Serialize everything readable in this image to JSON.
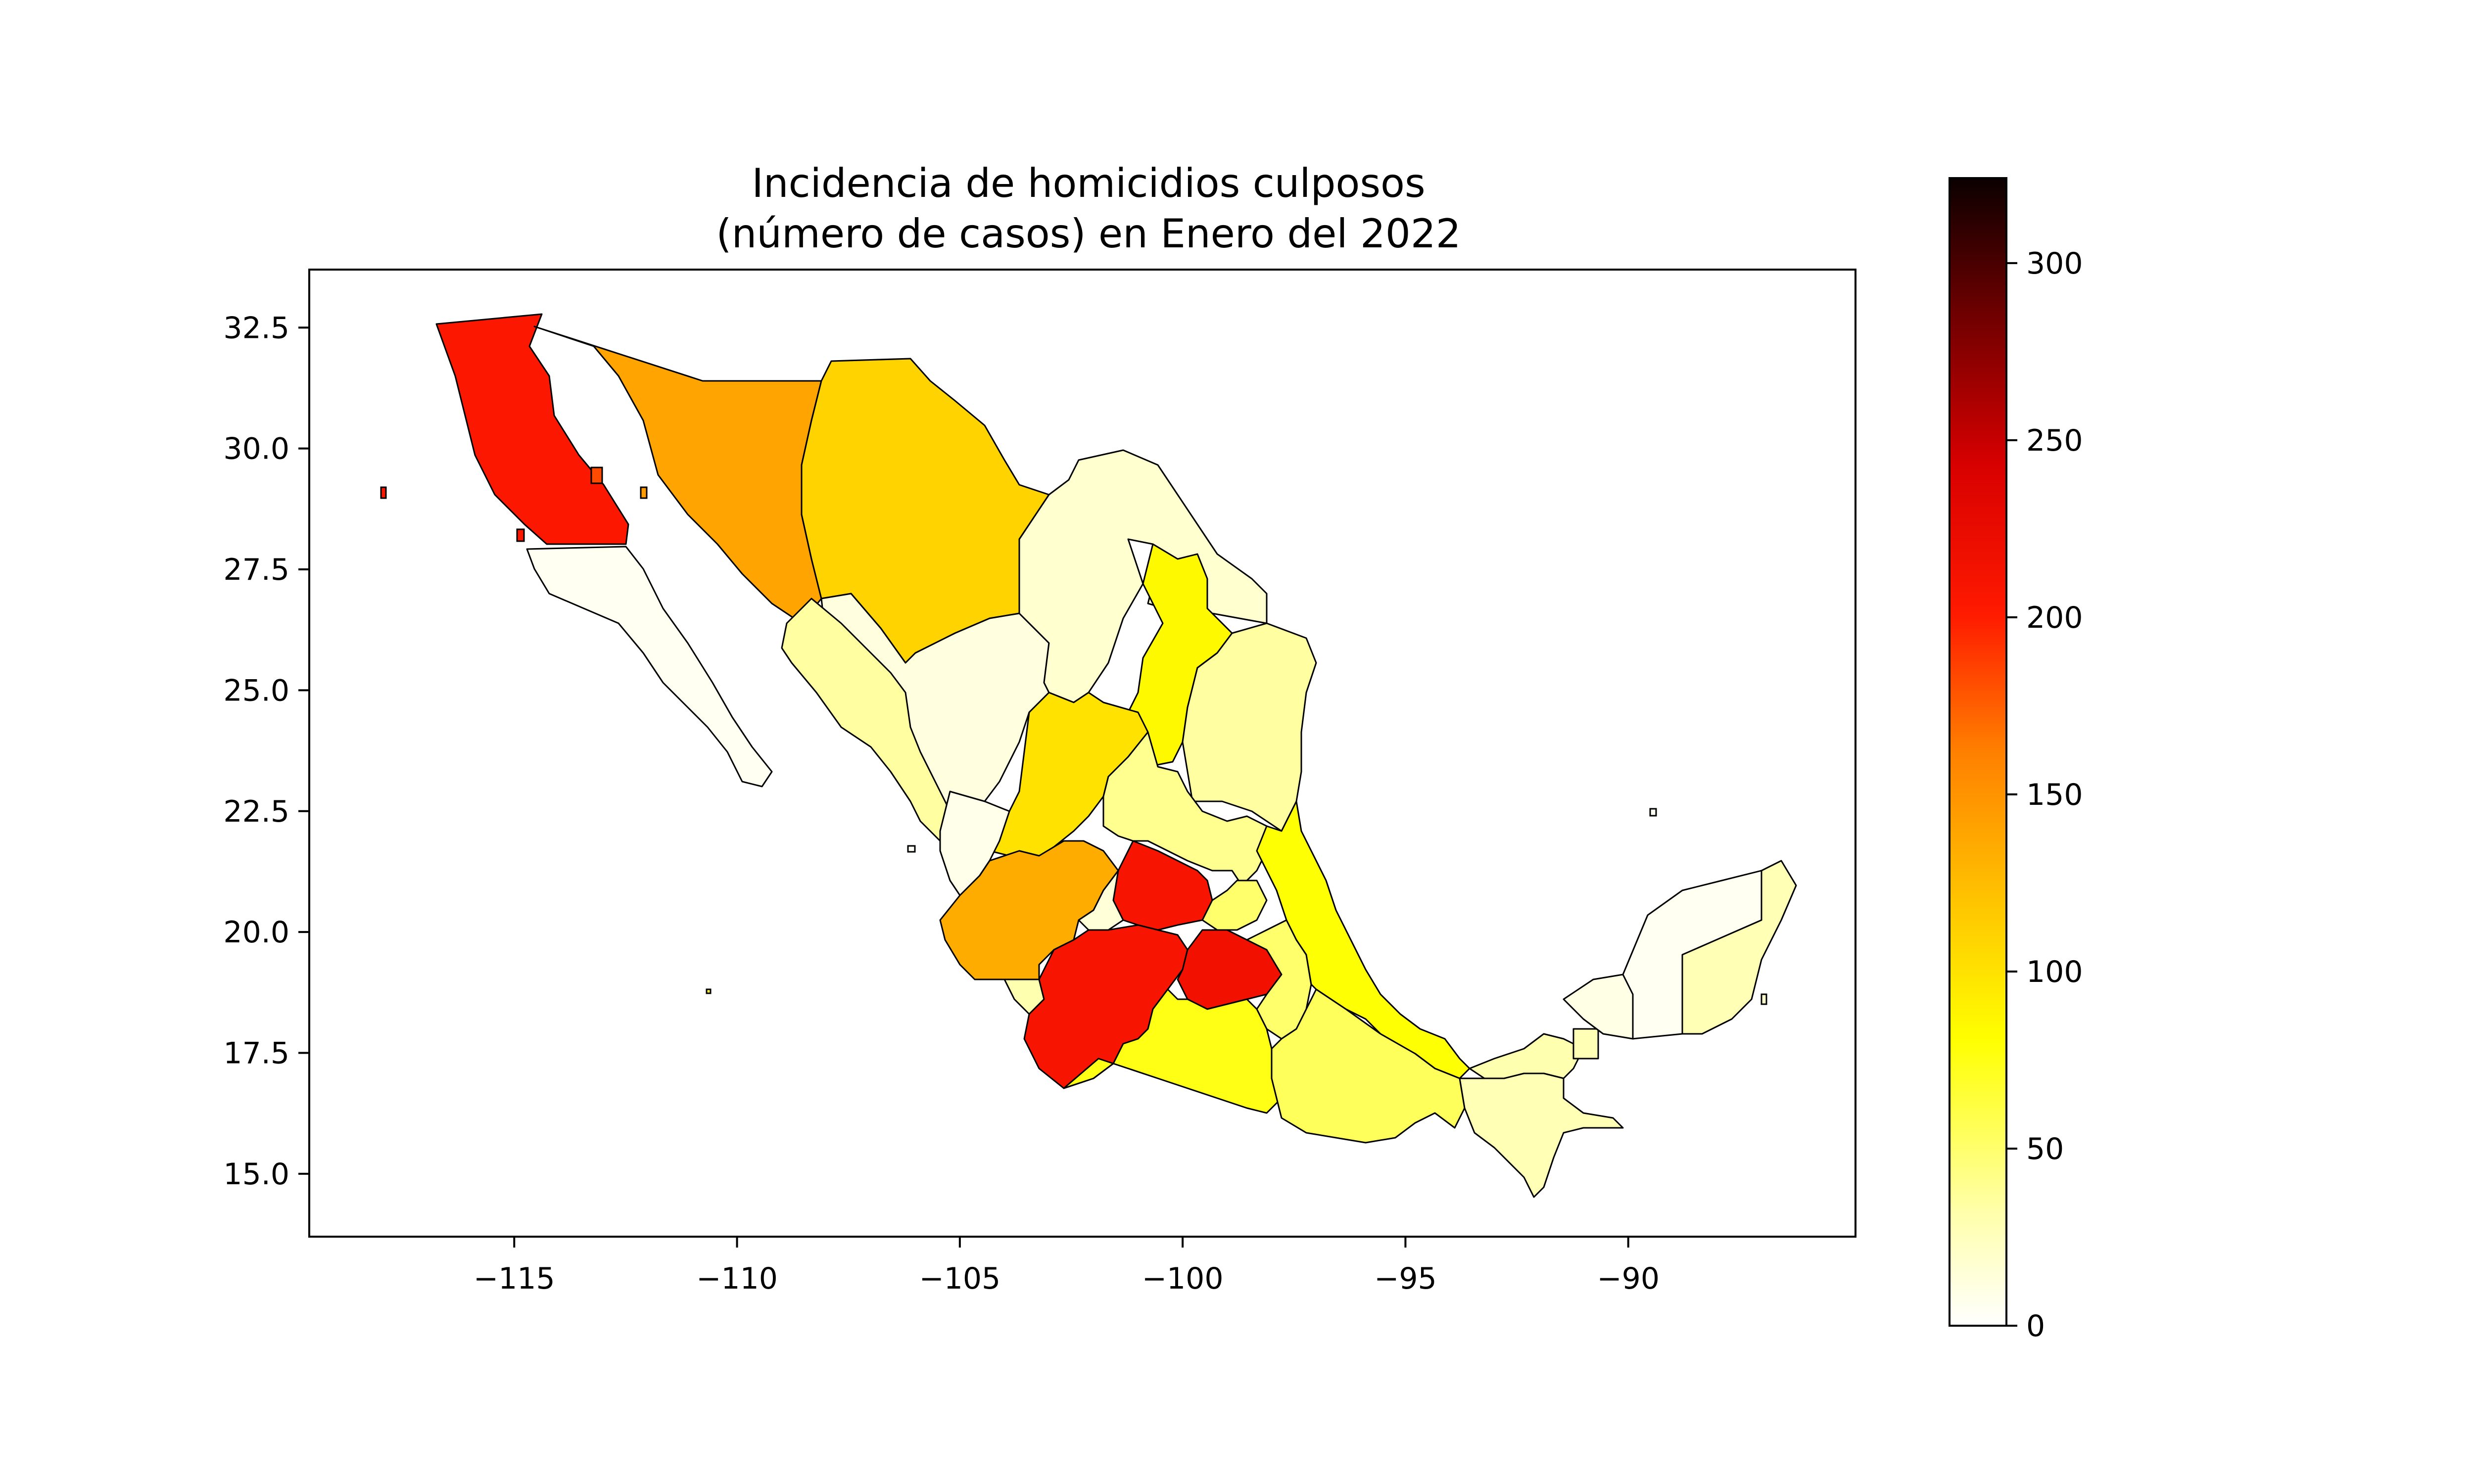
{
  "map": {
    "title_line1": "Incidencia de homicidios culposos",
    "title_line2": "(número de casos) en Enero del 2022",
    "x_ticks": [
      "−115",
      "−110",
      "−105",
      "−100",
      "−95",
      "−90"
    ],
    "x_tick_values": [
      -115,
      -110,
      -105,
      -100,
      -95,
      -90
    ],
    "y_ticks": [
      "15.0",
      "17.5",
      "20.0",
      "22.5",
      "25.0",
      "27.5",
      "30.0",
      "32.5"
    ],
    "y_tick_values": [
      15.0,
      17.5,
      20.0,
      22.5,
      25.0,
      27.5,
      30.0,
      32.5
    ],
    "x_range": [
      -119.6,
      -84.9
    ],
    "y_range": [
      13.7,
      33.7
    ],
    "colormap": "hot_r"
  },
  "colorbar": {
    "ticks": [
      "0",
      "50",
      "100",
      "150",
      "200",
      "250",
      "300"
    ],
    "tick_values": [
      0,
      50,
      100,
      150,
      200,
      250,
      300
    ],
    "range": [
      0,
      324
    ]
  },
  "chart_data": {
    "type": "choropleth",
    "values_estimated_from_color": [
      {
        "region": "northwest-peninsula-north",
        "value": 205
      },
      {
        "region": "northwest-peninsula-south",
        "value": 5
      },
      {
        "region": "northwest-mainland",
        "value": 140
      },
      {
        "region": "north-central",
        "value": 110
      },
      {
        "region": "northeast-border",
        "value": 18
      },
      {
        "region": "north-interior",
        "value": 12
      },
      {
        "region": "northeast-central",
        "value": 85
      },
      {
        "region": "northeast-gulf",
        "value": 35
      },
      {
        "region": "pacific-northwest-coast",
        "value": 35
      },
      {
        "region": "north-central-interior",
        "value": 100
      },
      {
        "region": "central-plateau",
        "value": 40
      },
      {
        "region": "pacific-central-coast",
        "value": 8
      },
      {
        "region": "west-central",
        "value": 135
      },
      {
        "region": "west-coast-small",
        "value": 30
      },
      {
        "region": "bajio",
        "value": 210
      },
      {
        "region": "central-small-a",
        "value": 15
      },
      {
        "region": "central-small-b",
        "value": 50
      },
      {
        "region": "west-pacific-south",
        "value": 210
      },
      {
        "region": "central-capital",
        "value": 215
      },
      {
        "region": "central-east",
        "value": 50
      },
      {
        "region": "gulf-central",
        "value": 80
      },
      {
        "region": "south-pacific",
        "value": 75
      },
      {
        "region": "south-central",
        "value": 55
      },
      {
        "region": "gulf-south",
        "value": 30
      },
      {
        "region": "southeast-border",
        "value": 28
      },
      {
        "region": "southeast-small",
        "value": 28
      },
      {
        "region": "peninsula-west",
        "value": 10
      },
      {
        "region": "peninsula-central",
        "value": 5
      },
      {
        "region": "peninsula-east",
        "value": 28
      }
    ]
  }
}
